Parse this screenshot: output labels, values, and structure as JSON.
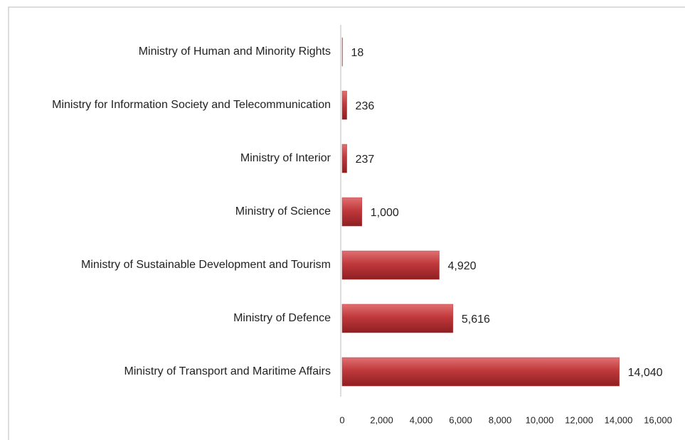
{
  "chart_data": {
    "type": "bar",
    "orientation": "horizontal",
    "categories": [
      "Ministry of Human and Minority Rights",
      "Ministry for Information Society and Telecommunication",
      "Ministry of Interior",
      "Ministry of Science",
      "Ministry of Sustainable Development and Tourism",
      "Ministry of Defence",
      "Ministry of Transport and Maritime Affairs"
    ],
    "values": [
      18,
      236,
      237,
      1000,
      4920,
      5616,
      14040
    ],
    "value_labels": [
      "18",
      "236",
      "237",
      "1,000",
      "4,920",
      "5,616",
      "14,040"
    ],
    "color": "#c0393b",
    "xlim": [
      0,
      16000
    ],
    "xticks": [
      0,
      {
        "value": 2000,
        "label": "2,000"
      },
      {
        "value": 4000,
        "label": "4,000"
      },
      {
        "value": 6000,
        "label": "6,000"
      },
      {
        "value": 8000,
        "label": "8,000"
      },
      {
        "value": 10000,
        "label": "10,000"
      },
      {
        "value": 12000,
        "label": "12,000"
      },
      {
        "value": 14000,
        "label": "14,000"
      },
      {
        "value": 16000,
        "label": "16,000"
      }
    ],
    "grid": false
  }
}
